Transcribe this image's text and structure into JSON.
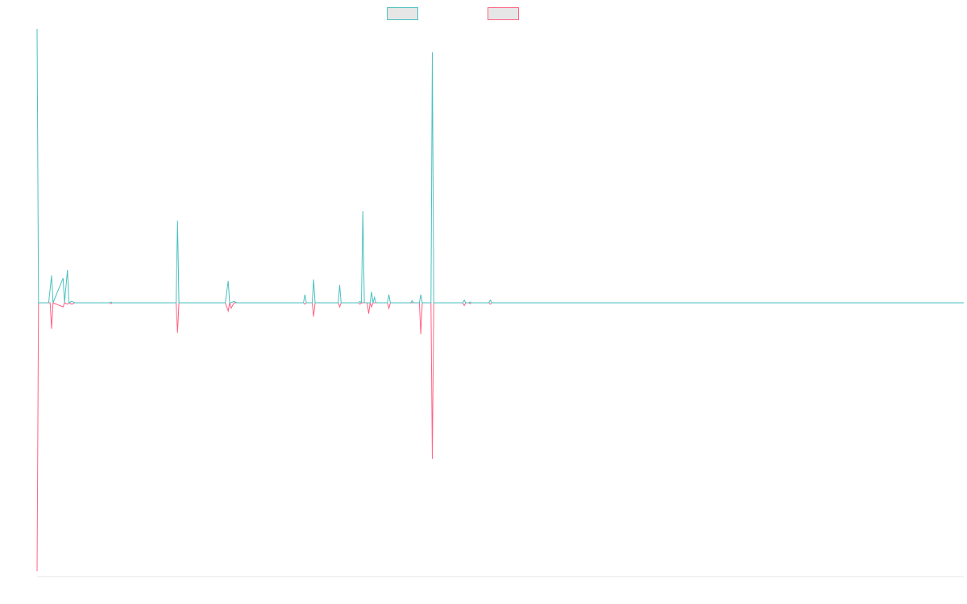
{
  "legend": {
    "series_a_label": "",
    "series_b_label": ""
  },
  "chart_data": {
    "type": "line",
    "title": "",
    "xlabel": "",
    "ylabel": "",
    "grid": false,
    "legend_position": "top-center",
    "xlim": [
      0,
      320
    ],
    "ylim": [
      -100,
      100
    ],
    "series": [
      {
        "color": "#4bc0c0",
        "points": [
          [
            0,
            100
          ],
          [
            0.5,
            0
          ],
          [
            4,
            0
          ],
          [
            5,
            10
          ],
          [
            5.5,
            0
          ],
          [
            9,
            9
          ],
          [
            9.5,
            0
          ],
          [
            10.5,
            12
          ],
          [
            11,
            0
          ],
          [
            12,
            0.5
          ],
          [
            13,
            0
          ],
          [
            25,
            0
          ],
          [
            25.5,
            0.3
          ],
          [
            26,
            0
          ],
          [
            48,
            0
          ],
          [
            48.5,
            30
          ],
          [
            49,
            0
          ],
          [
            65,
            0
          ],
          [
            66,
            8
          ],
          [
            66.5,
            0
          ],
          [
            67,
            0
          ],
          [
            68,
            0.5
          ],
          [
            69,
            0
          ],
          [
            92,
            0
          ],
          [
            92.5,
            3
          ],
          [
            93,
            0
          ],
          [
            95,
            0
          ],
          [
            95.5,
            8.5
          ],
          [
            96,
            0
          ],
          [
            104,
            0
          ],
          [
            104.5,
            6.5
          ],
          [
            105,
            0
          ],
          [
            111,
            0
          ],
          [
            111.5,
            0.5
          ],
          [
            112,
            0
          ],
          [
            112.5,
            33.5
          ],
          [
            113,
            0
          ],
          [
            115,
            0
          ],
          [
            115.5,
            4
          ],
          [
            116,
            0
          ],
          [
            116.5,
            2
          ],
          [
            117,
            0
          ],
          [
            121,
            0
          ],
          [
            121.5,
            3
          ],
          [
            122,
            0
          ],
          [
            129,
            0
          ],
          [
            129.5,
            0.8
          ],
          [
            130,
            0
          ],
          [
            132,
            0
          ],
          [
            132.5,
            3
          ],
          [
            133,
            0
          ],
          [
            136,
            0
          ],
          [
            136.5,
            91.5
          ],
          [
            137,
            0
          ],
          [
            147,
            0
          ],
          [
            147.5,
            1
          ],
          [
            148,
            0
          ],
          [
            149,
            0
          ],
          [
            149.5,
            0.3
          ],
          [
            150,
            0
          ],
          [
            156,
            0
          ],
          [
            156.5,
            1
          ],
          [
            157,
            0
          ],
          [
            320,
            0
          ]
        ]
      },
      {
        "color": "#ff6384",
        "points": [
          [
            0,
            -98
          ],
          [
            0.5,
            0
          ],
          [
            4.5,
            0
          ],
          [
            5,
            -9.5
          ],
          [
            5.5,
            0
          ],
          [
            9,
            -1.5
          ],
          [
            9.5,
            0
          ],
          [
            10.5,
            -0.5
          ],
          [
            11,
            0
          ],
          [
            12,
            -0.5
          ],
          [
            13,
            0
          ],
          [
            25,
            0
          ],
          [
            25.5,
            -0.3
          ],
          [
            26,
            0
          ],
          [
            48,
            0
          ],
          [
            48.5,
            -11
          ],
          [
            49,
            0
          ],
          [
            65,
            0
          ],
          [
            66,
            -3
          ],
          [
            66.5,
            0
          ],
          [
            67,
            -2
          ],
          [
            68,
            0
          ],
          [
            92,
            0
          ],
          [
            92.5,
            -0.5
          ],
          [
            93,
            0
          ],
          [
            95,
            0
          ],
          [
            95.5,
            -5
          ],
          [
            96,
            0
          ],
          [
            104,
            0
          ],
          [
            104.5,
            -1.5
          ],
          [
            105,
            0
          ],
          [
            111,
            0
          ],
          [
            111.5,
            -0.5
          ],
          [
            112,
            0
          ],
          [
            114,
            0
          ],
          [
            114.5,
            -4
          ],
          [
            115,
            0
          ],
          [
            115.5,
            -1.5
          ],
          [
            116,
            0
          ],
          [
            121,
            0
          ],
          [
            121.5,
            -2
          ],
          [
            122,
            0
          ],
          [
            132,
            0
          ],
          [
            132.5,
            -11.5
          ],
          [
            133,
            0
          ],
          [
            136,
            0
          ],
          [
            136.5,
            -57
          ],
          [
            137,
            0
          ],
          [
            147,
            0
          ],
          [
            147.5,
            -1
          ],
          [
            148,
            0
          ],
          [
            149,
            0
          ],
          [
            149.5,
            -0.3
          ],
          [
            150,
            0
          ],
          [
            156,
            0
          ],
          [
            156.5,
            -0.5
          ],
          [
            157,
            0
          ],
          [
            320,
            0
          ]
        ]
      }
    ]
  }
}
